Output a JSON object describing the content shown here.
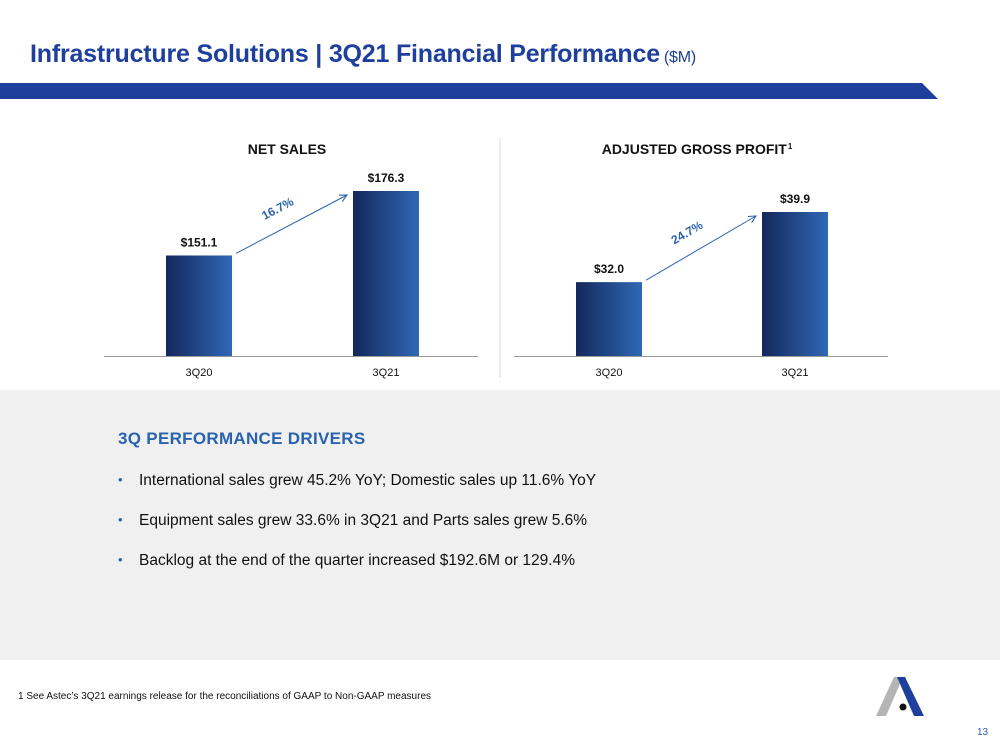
{
  "header": {
    "title": "Infrastructure Solutions | 3Q21 Financial Performance",
    "unit": "($M)"
  },
  "colors": {
    "title": "#1e3f9c",
    "accent": "#2a63ad",
    "bar_dark": "#14285c",
    "bar_light": "#2f68b5",
    "panel_bg": "#f0f0f0"
  },
  "chart_data": [
    {
      "type": "bar",
      "title": "NET SALES",
      "categories": [
        "3Q20",
        "3Q21"
      ],
      "values": [
        151.1,
        176.3
      ],
      "value_labels": [
        "$151.1",
        "$176.3"
      ],
      "growth_label": "16.7%",
      "xlabel": "",
      "ylabel": ""
    },
    {
      "type": "bar",
      "title": "ADJUSTED GROSS PROFIT",
      "title_footnote": "1",
      "categories": [
        "3Q20",
        "3Q21"
      ],
      "values": [
        32.0,
        39.9
      ],
      "value_labels": [
        "$32.0",
        "$39.9"
      ],
      "growth_label": "24.7%",
      "xlabel": "",
      "ylabel": ""
    }
  ],
  "drivers": {
    "title": "3Q PERFORMANCE DRIVERS",
    "bullet_glyph": "•",
    "items": [
      "International sales grew 45.2% YoY; Domestic sales up 11.6% YoY",
      "Equipment sales grew 33.6% in 3Q21 and Parts sales grew 5.6%",
      "Backlog at the end of the quarter increased $192.6M or 129.4%"
    ]
  },
  "footer": {
    "footnote": "1 See Astec’s 3Q21 earnings release for the reconciliations of GAAP to Non-GAAP measures",
    "page_number": "13",
    "logo_icon": "astec-logo-icon"
  }
}
